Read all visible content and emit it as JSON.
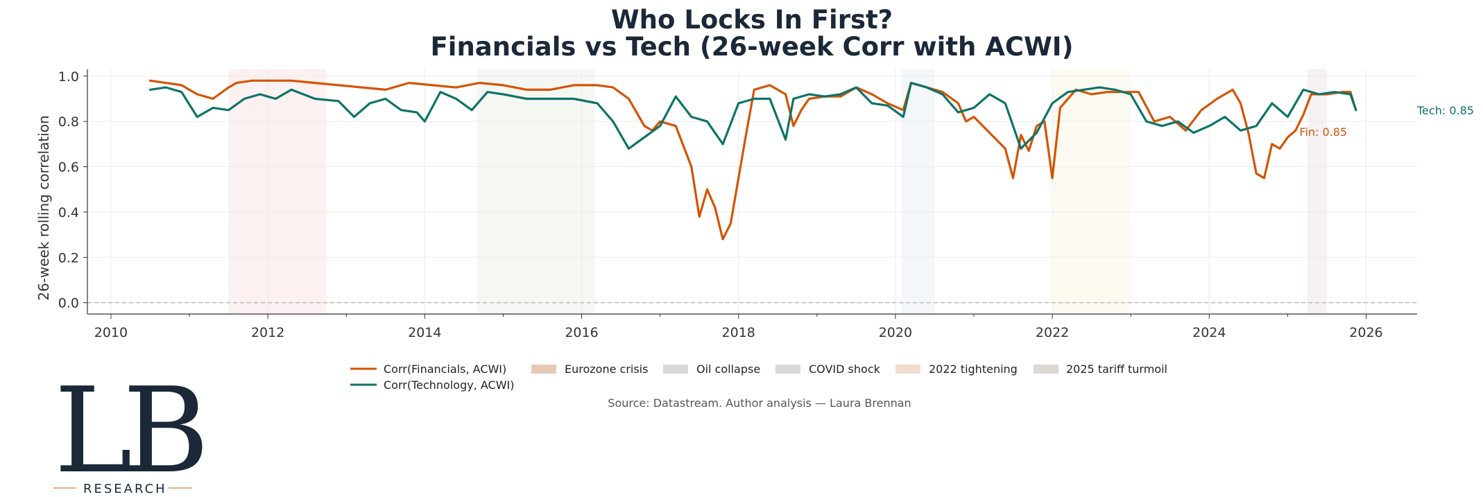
{
  "chart_data": {
    "type": "line",
    "title_lines": [
      "Who Locks In First?",
      "Financials vs Tech (26-week Corr with ACWI)"
    ],
    "ylabel": "26-week rolling correlation",
    "xlabel": "",
    "xlim": [
      2009.7,
      2026.65
    ],
    "ylim": [
      -0.05,
      1.03
    ],
    "x_ticks": [
      2010,
      2012,
      2014,
      2016,
      2018,
      2020,
      2022,
      2024,
      2026
    ],
    "x_tick_labels": [
      "2010",
      "2012",
      "2014",
      "2016",
      "2018",
      "2020",
      "2022",
      "2024",
      "2026"
    ],
    "y_ticks": [
      0.0,
      0.2,
      0.4,
      0.6,
      0.8,
      1.0
    ],
    "y_tick_labels": [
      "0.0",
      "0.2",
      "0.4",
      "0.6",
      "0.8",
      "1.0"
    ],
    "reference_line": 0.0,
    "grid": true,
    "shaded_periods": [
      {
        "name": "Eurozone crisis",
        "start": 2011.5,
        "end": 2012.75,
        "color": "#c0392b",
        "legend_color": "#e8c8b8"
      },
      {
        "name": "Oil collapse",
        "start": 2014.67,
        "end": 2016.17,
        "color": "#6b8e4e",
        "legend_color": "#d9d9d9"
      },
      {
        "name": "COVID shock",
        "start": 2020.08,
        "end": 2020.5,
        "color": "#5b8dbf",
        "legend_color": "#d9d9d9"
      },
      {
        "name": "2022 tightening",
        "start": 2022.0,
        "end": 2023.0,
        "color": "#e8b84a",
        "legend_color": "#f0dccc"
      },
      {
        "name": "2025 tariff turmoil",
        "start": 2025.25,
        "end": 2025.5,
        "color": "#8b3a5a",
        "legend_color": "#dcd8d4"
      }
    ],
    "series": [
      {
        "name": "Corr(Financials, ACWI)",
        "color": "#d35400",
        "x": [
          2010.5,
          2010.7,
          2010.9,
          2011.1,
          2011.3,
          2011.5,
          2011.6,
          2011.8,
          2012.0,
          2012.3,
          2012.6,
          2012.9,
          2013.2,
          2013.5,
          2013.8,
          2014.1,
          2014.4,
          2014.7,
          2015.0,
          2015.3,
          2015.6,
          2015.9,
          2016.2,
          2016.4,
          2016.6,
          2016.8,
          2016.9,
          2017.0,
          2017.2,
          2017.4,
          2017.5,
          2017.6,
          2017.7,
          2017.8,
          2017.9,
          2018.0,
          2018.1,
          2018.2,
          2018.4,
          2018.6,
          2018.7,
          2018.8,
          2018.9,
          2019.1,
          2019.3,
          2019.5,
          2019.7,
          2019.9,
          2020.1,
          2020.2,
          2020.4,
          2020.6,
          2020.8,
          2020.9,
          2021.0,
          2021.2,
          2021.4,
          2021.5,
          2021.6,
          2021.7,
          2021.8,
          2021.9,
          2022.0,
          2022.1,
          2022.3,
          2022.5,
          2022.7,
          2022.9,
          2023.1,
          2023.3,
          2023.5,
          2023.7,
          2023.9,
          2024.1,
          2024.3,
          2024.4,
          2024.5,
          2024.6,
          2024.7,
          2024.8,
          2024.9,
          2025.0,
          2025.1,
          2025.2,
          2025.3,
          2025.5,
          2025.7,
          2025.8,
          2025.87
        ],
        "y": [
          0.98,
          0.97,
          0.96,
          0.92,
          0.9,
          0.95,
          0.97,
          0.98,
          0.98,
          0.98,
          0.97,
          0.96,
          0.95,
          0.94,
          0.97,
          0.96,
          0.95,
          0.97,
          0.96,
          0.94,
          0.94,
          0.96,
          0.96,
          0.95,
          0.9,
          0.78,
          0.76,
          0.8,
          0.78,
          0.6,
          0.38,
          0.5,
          0.42,
          0.28,
          0.35,
          0.55,
          0.75,
          0.94,
          0.96,
          0.92,
          0.78,
          0.85,
          0.9,
          0.91,
          0.91,
          0.95,
          0.92,
          0.88,
          0.85,
          0.97,
          0.95,
          0.93,
          0.88,
          0.8,
          0.82,
          0.75,
          0.68,
          0.55,
          0.74,
          0.67,
          0.78,
          0.8,
          0.55,
          0.86,
          0.94,
          0.92,
          0.93,
          0.93,
          0.93,
          0.8,
          0.82,
          0.76,
          0.85,
          0.9,
          0.94,
          0.88,
          0.75,
          0.57,
          0.55,
          0.7,
          0.68,
          0.73,
          0.76,
          0.83,
          0.92,
          0.92,
          0.93,
          0.93,
          0.85
        ]
      },
      {
        "name": "Corr(Technology, ACWI)",
        "color": "#0e7368",
        "x": [
          2010.5,
          2010.7,
          2010.9,
          2011.1,
          2011.3,
          2011.5,
          2011.7,
          2011.9,
          2012.1,
          2012.3,
          2012.6,
          2012.9,
          2013.1,
          2013.3,
          2013.5,
          2013.7,
          2013.9,
          2014.0,
          2014.2,
          2014.4,
          2014.6,
          2014.8,
          2015.0,
          2015.3,
          2015.6,
          2015.9,
          2016.2,
          2016.4,
          2016.6,
          2016.8,
          2017.0,
          2017.2,
          2017.4,
          2017.6,
          2017.8,
          2018.0,
          2018.2,
          2018.4,
          2018.6,
          2018.7,
          2018.9,
          2019.1,
          2019.3,
          2019.5,
          2019.7,
          2019.9,
          2020.1,
          2020.2,
          2020.4,
          2020.6,
          2020.8,
          2021.0,
          2021.2,
          2021.4,
          2021.6,
          2021.8,
          2022.0,
          2022.2,
          2022.4,
          2022.6,
          2022.8,
          2023.0,
          2023.2,
          2023.4,
          2023.6,
          2023.8,
          2024.0,
          2024.2,
          2024.4,
          2024.6,
          2024.8,
          2025.0,
          2025.2,
          2025.4,
          2025.6,
          2025.8,
          2025.87
        ],
        "y": [
          0.94,
          0.95,
          0.93,
          0.82,
          0.86,
          0.85,
          0.9,
          0.92,
          0.9,
          0.94,
          0.9,
          0.89,
          0.82,
          0.88,
          0.9,
          0.85,
          0.84,
          0.8,
          0.93,
          0.9,
          0.85,
          0.93,
          0.92,
          0.9,
          0.9,
          0.9,
          0.88,
          0.8,
          0.68,
          0.73,
          0.78,
          0.91,
          0.82,
          0.8,
          0.7,
          0.88,
          0.9,
          0.9,
          0.72,
          0.9,
          0.92,
          0.91,
          0.92,
          0.95,
          0.88,
          0.87,
          0.82,
          0.97,
          0.95,
          0.92,
          0.84,
          0.86,
          0.92,
          0.88,
          0.68,
          0.75,
          0.88,
          0.93,
          0.94,
          0.95,
          0.94,
          0.92,
          0.8,
          0.78,
          0.8,
          0.75,
          0.78,
          0.82,
          0.76,
          0.78,
          0.88,
          0.82,
          0.94,
          0.92,
          0.93,
          0.92,
          0.85
        ]
      }
    ],
    "end_labels": [
      {
        "text": "Tech: 0.85",
        "color": "#0e7368"
      },
      {
        "text": "Fin: 0.85",
        "color": "#d35400"
      }
    ],
    "legend_position": "bottom-center",
    "source": "Source: Datastream. Author analysis — Laura Brennan"
  },
  "logo": {
    "letters": "LB",
    "subtitle": "RESEARCH"
  }
}
